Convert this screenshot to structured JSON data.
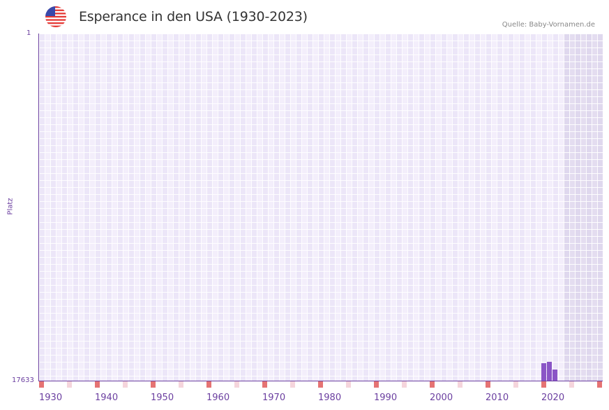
{
  "header": {
    "flag_icon": "us-flag-icon",
    "title": "Esperance in den USA (1930-2023)",
    "source": "Quelle: Baby-Vornamen.de"
  },
  "axes": {
    "y_title": "Platz",
    "y_top": "1",
    "y_bottom": "17633",
    "x_labels": [
      "1930",
      "1940",
      "1950",
      "1960",
      "1970",
      "1980",
      "1990",
      "2000",
      "2010",
      "2020"
    ]
  },
  "colors": {
    "bar": "#8a55c6",
    "axis": "#6b3fa0",
    "decade_marker": "#e57373",
    "half_decade_marker": "#f5d5dc",
    "plot_bg": "#f3eefb"
  },
  "chart_data": {
    "type": "bar",
    "title": "Esperance in den USA (1930-2023)",
    "xlabel": "",
    "ylabel": "Platz",
    "ylim": [
      17633,
      1
    ],
    "y_inverted": true,
    "x_range": [
      1930,
      2030
    ],
    "x_tick_labels": [
      "1930",
      "1940",
      "1950",
      "1960",
      "1970",
      "1980",
      "1990",
      "2000",
      "2010",
      "2020"
    ],
    "categories": [
      "2020",
      "2021",
      "2022"
    ],
    "values": [
      16746,
      16675,
      17065
    ],
    "grid": true,
    "legend": null,
    "annotations": [
      "Quelle: Baby-Vornamen.de"
    ]
  }
}
